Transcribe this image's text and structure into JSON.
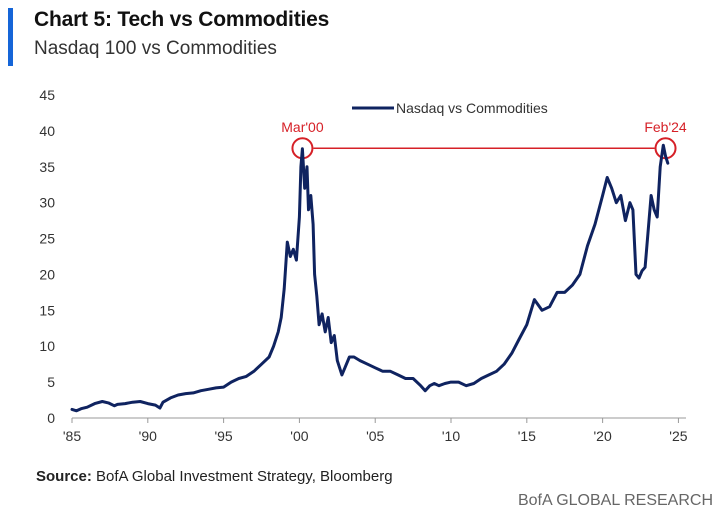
{
  "header": {
    "title": "Chart 5: Tech vs Commodities",
    "subtitle": "Nasdaq 100 vs Commodities"
  },
  "footer": {
    "source_label": "Source:",
    "source_text": " BofA Global Investment Strategy, Bloomberg",
    "brand": "BofA GLOBAL RESEARCH"
  },
  "colors": {
    "accent": "#1565d8",
    "series": "#0f2360",
    "annotation": "#d62027",
    "axis": "#999999"
  },
  "chart_data": {
    "type": "line",
    "title": "Chart 5: Tech vs Commodities",
    "subtitle": "Nasdaq 100 vs Commodities",
    "xlabel": "",
    "ylabel": "",
    "xlim": [
      1985,
      2025.5
    ],
    "ylim": [
      0,
      45
    ],
    "x_ticks": [
      1985,
      1990,
      1995,
      2000,
      2005,
      2010,
      2015,
      2020,
      2025
    ],
    "x_tick_labels": [
      "'85",
      "'90",
      "'95",
      "'00",
      "'05",
      "'10",
      "'15",
      "'20",
      "'25"
    ],
    "y_ticks": [
      0,
      5,
      10,
      15,
      20,
      25,
      30,
      35,
      40,
      45
    ],
    "y_tick_labels": [
      "0",
      "5",
      "10",
      "15",
      "20",
      "25",
      "30",
      "35",
      "40",
      "45"
    ],
    "grid": false,
    "legend": "top-center",
    "series": [
      {
        "name": "Nasdaq vs Commodities",
        "x": [
          1985.0,
          1985.3,
          1985.6,
          1986.0,
          1986.5,
          1987.0,
          1987.4,
          1987.8,
          1988.0,
          1988.5,
          1989.0,
          1989.5,
          1990.0,
          1990.5,
          1990.8,
          1991.0,
          1991.5,
          1992.0,
          1992.5,
          1993.0,
          1993.5,
          1994.0,
          1994.5,
          1995.0,
          1995.5,
          1996.0,
          1996.5,
          1997.0,
          1997.5,
          1998.0,
          1998.3,
          1998.6,
          1998.8,
          1999.0,
          1999.2,
          1999.4,
          1999.6,
          1999.8,
          2000.0,
          2000.1,
          2000.2,
          2000.35,
          2000.5,
          2000.6,
          2000.75,
          2000.9,
          2001.0,
          2001.15,
          2001.3,
          2001.5,
          2001.7,
          2001.9,
          2002.1,
          2002.3,
          2002.5,
          2002.8,
          2003.0,
          2003.3,
          2003.6,
          2004.0,
          2004.5,
          2005.0,
          2005.5,
          2006.0,
          2006.5,
          2007.0,
          2007.5,
          2008.0,
          2008.3,
          2008.6,
          2008.9,
          2009.2,
          2009.6,
          2010.0,
          2010.5,
          2011.0,
          2011.5,
          2012.0,
          2012.5,
          2013.0,
          2013.5,
          2014.0,
          2014.5,
          2015.0,
          2015.5,
          2016.0,
          2016.5,
          2017.0,
          2017.5,
          2018.0,
          2018.5,
          2019.0,
          2019.5,
          2020.0,
          2020.3,
          2020.6,
          2020.9,
          2021.2,
          2021.5,
          2021.8,
          2022.0,
          2022.2,
          2022.4,
          2022.6,
          2022.8,
          2023.0,
          2023.2,
          2023.4,
          2023.6,
          2023.8,
          2024.0,
          2024.15,
          2024.3
        ],
        "y": [
          1.2,
          1.0,
          1.3,
          1.5,
          2.0,
          2.3,
          2.1,
          1.7,
          1.9,
          2.0,
          2.2,
          2.3,
          2.0,
          1.8,
          1.4,
          2.2,
          2.8,
          3.2,
          3.4,
          3.5,
          3.8,
          4.0,
          4.2,
          4.3,
          5.0,
          5.5,
          5.8,
          6.5,
          7.5,
          8.5,
          10.0,
          12.0,
          14.0,
          18.0,
          24.5,
          22.5,
          23.5,
          22.0,
          28.0,
          35.0,
          37.5,
          32.0,
          35.0,
          29.0,
          31.0,
          27.0,
          20.0,
          17.0,
          13.0,
          14.5,
          12.0,
          14.0,
          10.5,
          11.5,
          8.0,
          6.0,
          7.0,
          8.5,
          8.5,
          8.0,
          7.5,
          7.0,
          6.5,
          6.5,
          6.0,
          5.5,
          5.5,
          4.5,
          3.8,
          4.5,
          4.8,
          4.5,
          4.8,
          5.0,
          5.0,
          4.5,
          4.8,
          5.5,
          6.0,
          6.5,
          7.5,
          9.0,
          11.0,
          13.0,
          16.5,
          15.0,
          15.5,
          17.5,
          17.5,
          18.5,
          20.0,
          24.0,
          27.0,
          31.0,
          33.5,
          32.0,
          30.0,
          31.0,
          27.5,
          30.0,
          29.0,
          20.0,
          19.5,
          20.5,
          21.0,
          26.0,
          31.0,
          29.0,
          28.0,
          35.0,
          38.0,
          36.5,
          35.5
        ]
      }
    ],
    "annotations": [
      {
        "label": "Mar'00",
        "x": 2000.2,
        "y": 37.5
      },
      {
        "label": "Feb'24",
        "x": 2024.15,
        "y": 38.0
      }
    ],
    "reference_line": {
      "y": 38.0,
      "from": "Mar'00",
      "to": "Feb'24"
    }
  }
}
